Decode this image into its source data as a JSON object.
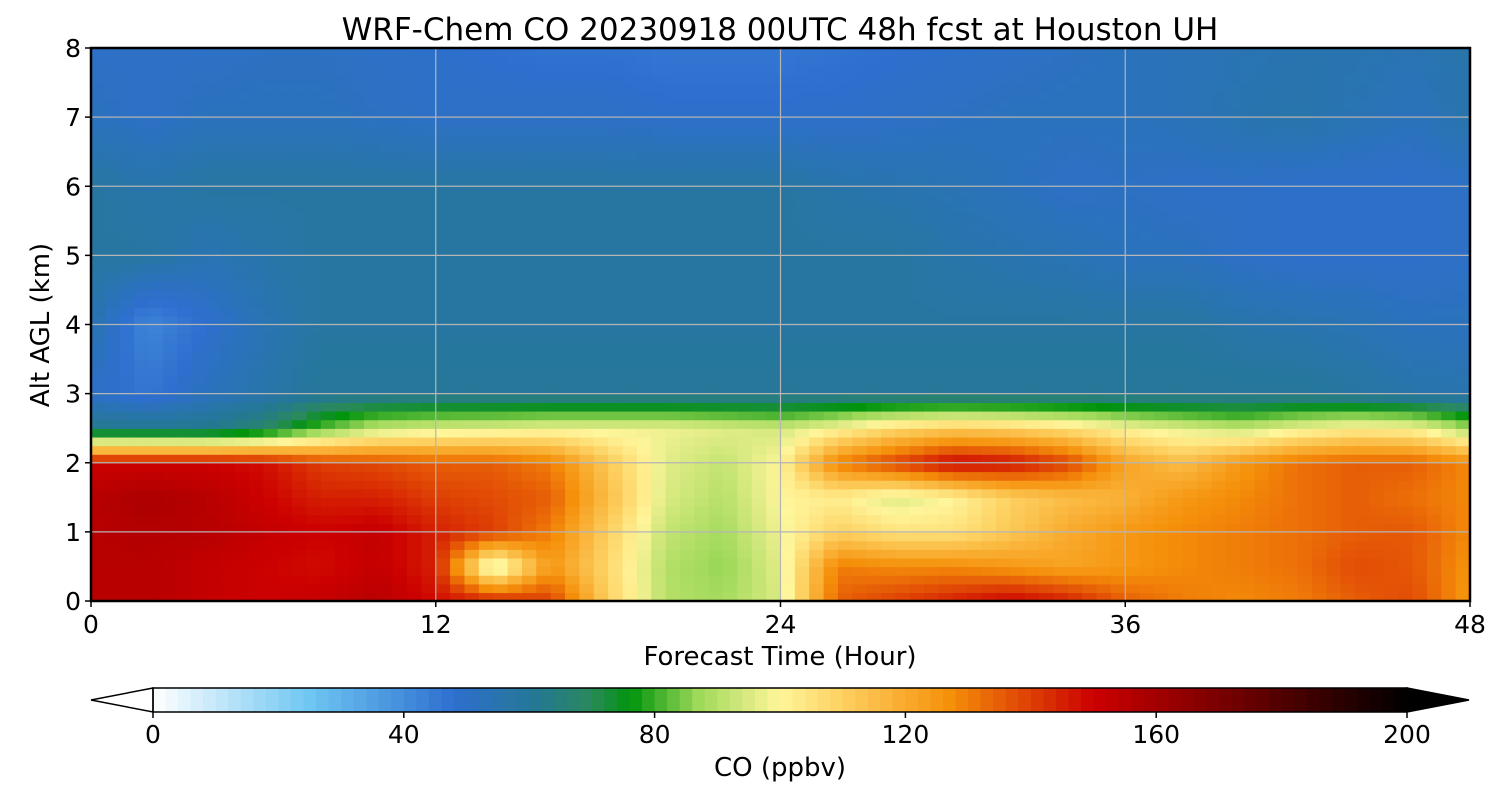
{
  "chart_data": {
    "type": "heatmap",
    "title": "WRF-Chem CO  20230918 00UTC 48h fcst at Houston UH",
    "xlabel": "Forecast Time (Hour)",
    "ylabel": "Alt AGL (km)",
    "xlim": [
      0,
      48
    ],
    "ylim": [
      0,
      8
    ],
    "x_ticks": [
      "0",
      "12",
      "24",
      "36",
      "48"
    ],
    "y_ticks": [
      "0",
      "1",
      "2",
      "3",
      "4",
      "5",
      "6",
      "7",
      "8"
    ],
    "grid": true,
    "x": [
      0,
      2,
      4,
      6,
      8,
      10,
      12,
      14,
      16,
      18,
      20,
      22,
      24,
      26,
      28,
      30,
      32,
      34,
      36,
      38,
      40,
      42,
      44,
      46,
      48
    ],
    "y": [
      0,
      0.5,
      1,
      1.5,
      2,
      2.5,
      3,
      4,
      5,
      6,
      7,
      8
    ],
    "z": [
      [
        155,
        155,
        152,
        150,
        152,
        155,
        148,
        145,
        140,
        110,
        90,
        88,
        95,
        135,
        140,
        145,
        150,
        145,
        135,
        130,
        128,
        130,
        135,
        138,
        125
      ],
      [
        155,
        155,
        152,
        150,
        148,
        152,
        145,
        90,
        125,
        108,
        90,
        86,
        96,
        130,
        128,
        128,
        125,
        122,
        125,
        128,
        130,
        132,
        138,
        136,
        126
      ],
      [
        155,
        156,
        155,
        152,
        150,
        152,
        145,
        140,
        130,
        110,
        92,
        88,
        98,
        110,
        105,
        105,
        112,
        120,
        125,
        128,
        130,
        132,
        135,
        136,
        128
      ],
      [
        155,
        158,
        155,
        150,
        145,
        145,
        140,
        138,
        135,
        115,
        95,
        90,
        100,
        102,
        95,
        100,
        110,
        115,
        118,
        125,
        128,
        132,
        135,
        132,
        128
      ],
      [
        150,
        150,
        150,
        148,
        140,
        138,
        135,
        135,
        130,
        112,
        96,
        92,
        100,
        130,
        140,
        150,
        148,
        140,
        122,
        115,
        125,
        132,
        135,
        135,
        128
      ],
      [
        62,
        62,
        62,
        68,
        82,
        92,
        95,
        96,
        98,
        98,
        98,
        96,
        94,
        100,
        108,
        112,
        110,
        106,
        100,
        96,
        92,
        98,
        102,
        100,
        88
      ],
      [
        50,
        46,
        52,
        56,
        60,
        60,
        60,
        60,
        60,
        60,
        60,
        60,
        60,
        60,
        60,
        60,
        60,
        60,
        60,
        60,
        60,
        60,
        58,
        56,
        55
      ],
      [
        55,
        42,
        48,
        54,
        58,
        58,
        58,
        58,
        58,
        58,
        58,
        58,
        58,
        58,
        58,
        58,
        58,
        58,
        58,
        58,
        56,
        55,
        54,
        52,
        52
      ],
      [
        58,
        58,
        54,
        56,
        58,
        58,
        58,
        58,
        58,
        58,
        58,
        58,
        58,
        58,
        58,
        56,
        55,
        54,
        52,
        52,
        50,
        49,
        49,
        49,
        50
      ],
      [
        58,
        56,
        58,
        58,
        58,
        58,
        58,
        58,
        58,
        58,
        58,
        58,
        58,
        56,
        55,
        54,
        52,
        50,
        51,
        50,
        50,
        49,
        49,
        49,
        50
      ],
      [
        52,
        50,
        52,
        52,
        52,
        51,
        50,
        50,
        50,
        50,
        49,
        49,
        49,
        49,
        50,
        51,
        52,
        52,
        52,
        53,
        55,
        56,
        54,
        52,
        56
      ],
      [
        50,
        50,
        50,
        51,
        51,
        50,
        49,
        48,
        47,
        47,
        46,
        46,
        46,
        47,
        48,
        49,
        50,
        51,
        52,
        53,
        54,
        55,
        55,
        54,
        56
      ]
    ],
    "colorbar": {
      "label": "CO  (ppbv)",
      "ticks": [
        "0",
        "40",
        "80",
        "120",
        "160",
        "200"
      ],
      "min": 0,
      "max": 200,
      "extend": "both",
      "color_stops": [
        {
          "v": 0,
          "c": "#ffffff"
        },
        {
          "v": 25,
          "c": "#6ec6f2"
        },
        {
          "v": 48,
          "c": "#2e6fcf"
        },
        {
          "v": 62,
          "c": "#24798f"
        },
        {
          "v": 70,
          "c": "#2a8a5a"
        },
        {
          "v": 76,
          "c": "#00930c"
        },
        {
          "v": 87,
          "c": "#9fd95a"
        },
        {
          "v": 100,
          "c": "#fff59a"
        },
        {
          "v": 110,
          "c": "#fdd060"
        },
        {
          "v": 127,
          "c": "#f5900a"
        },
        {
          "v": 150,
          "c": "#cc0000"
        },
        {
          "v": 170,
          "c": "#7a0000"
        },
        {
          "v": 200,
          "c": "#000000"
        }
      ]
    }
  }
}
